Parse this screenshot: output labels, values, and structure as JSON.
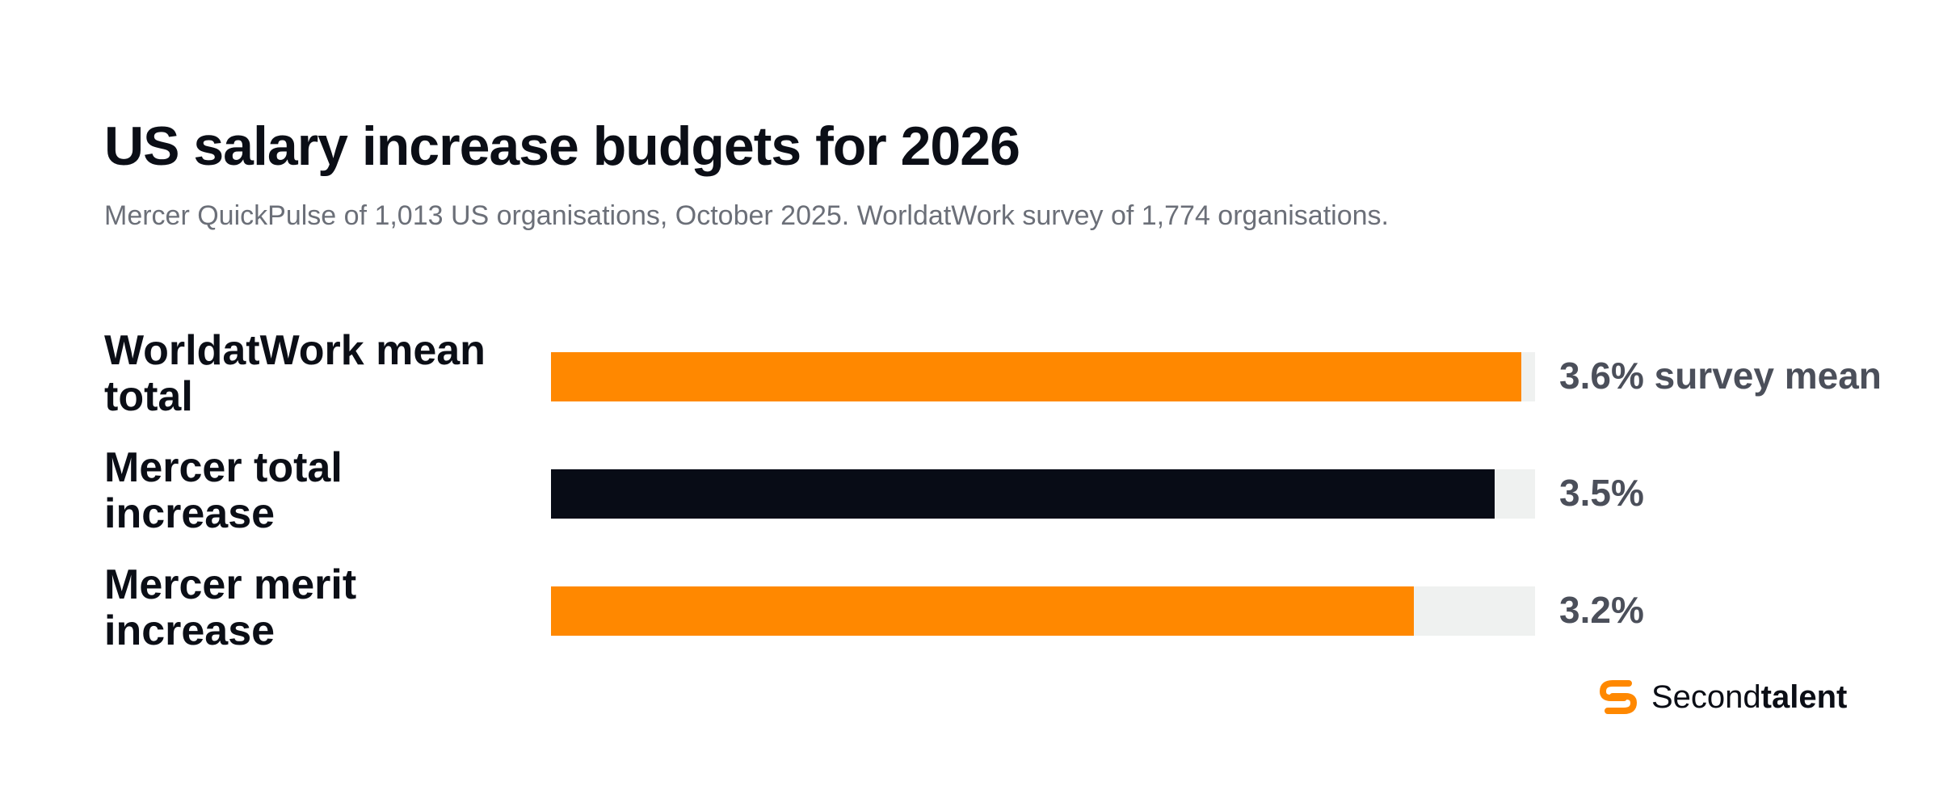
{
  "chart_data": {
    "type": "bar",
    "orientation": "horizontal",
    "title": "US salary increase budgets for 2026",
    "subtitle": "Mercer QuickPulse of 1,013 US organisations, October 2025. WorldatWork survey of 1,774 organisations.",
    "xlim": [
      0,
      3.65
    ],
    "categories": [
      "WorldatWork mean total",
      "Mercer total increase",
      "Mercer merit increase"
    ],
    "values": [
      3.6,
      3.5,
      3.2
    ],
    "value_labels": [
      "3.6% survey mean",
      "3.5%",
      "3.2%"
    ],
    "bar_colors": [
      "#ff8800",
      "#080c16",
      "#ff8800"
    ],
    "track_color": "#eff1f0",
    "grid": false,
    "legend": "none"
  },
  "brand": {
    "name_regular": "Second",
    "name_bold": "talent",
    "logo_icon": "secondtalent-logo-icon",
    "accent": "#ff8800"
  }
}
